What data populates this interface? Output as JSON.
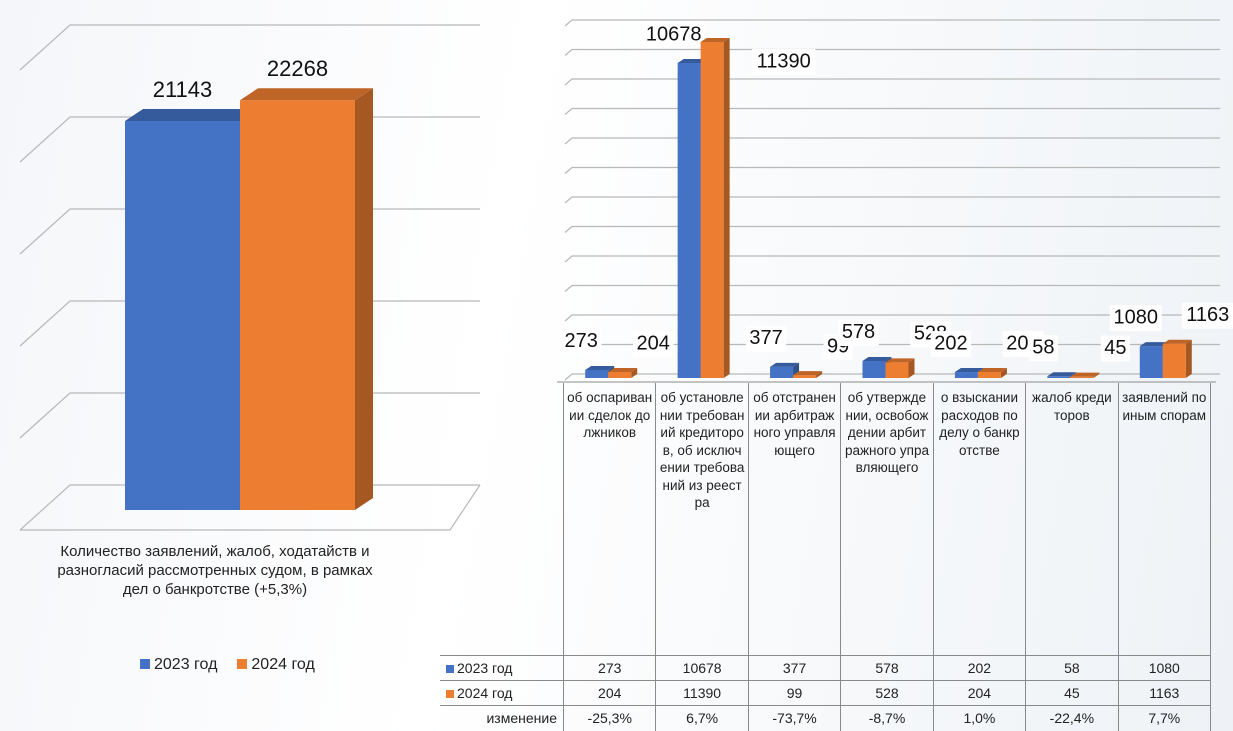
{
  "chart_data": [
    {
      "type": "bar3d",
      "categories": [
        "Количество заявлений, жалоб, ходатайств и разногласий рассмотренных судом, в рамках дел о банкротстве  (+5,3%)"
      ],
      "series": [
        {
          "name": "2023 год",
          "color": "#4472c4",
          "values": [
            21143
          ]
        },
        {
          "name": "2024 год",
          "color": "#ed7d31",
          "values": [
            22268
          ]
        }
      ],
      "ylim": [
        0,
        25000
      ],
      "yticks": [
        0,
        5000,
        10000,
        15000,
        20000,
        25000
      ],
      "grid": true,
      "legend": "bottom"
    },
    {
      "type": "bar3d",
      "categories": [
        "об оспаривании сделок должников",
        "об установлении требований кредиторов, об исключении требований из реестра",
        "об отстранении арбитражного управляющего",
        "об утверждении, освобождении арбитражного управляющего",
        "о взыскании расходов по делу о банкротстве",
        "жалоб кредиторов",
        "заявлений по иным спорам"
      ],
      "series": [
        {
          "name": "2023 год",
          "color": "#4472c4",
          "values": [
            273,
            10678,
            377,
            578,
            202,
            58,
            1080
          ]
        },
        {
          "name": "2024 год",
          "color": "#ed7d31",
          "values": [
            204,
            11390,
            99,
            528,
            204,
            45,
            1163
          ]
        }
      ],
      "ylim": [
        0,
        12000
      ],
      "yticks": [
        0,
        1000,
        2000,
        3000,
        4000,
        5000,
        6000,
        7000,
        8000,
        9000,
        10000,
        11000,
        12000
      ],
      "grid": true,
      "legend": "table",
      "change_row": {
        "label": "изменение",
        "values": [
          "-25,3%",
          "6,7%",
          "-73,7%",
          "-8,7%",
          "1,0%",
          "-22,4%",
          "7,7%"
        ]
      }
    }
  ]
}
